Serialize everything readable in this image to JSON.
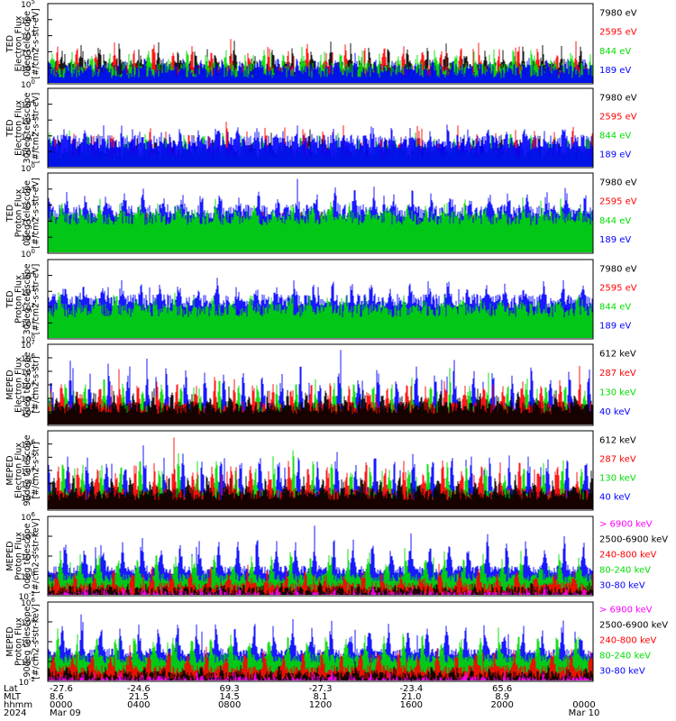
{
  "chart_data": [
    {
      "type": "line",
      "title": "",
      "ylabel": [
        "TED",
        "Electron Flux",
        "0deg telescope",
        "[#/cm2-s-str-eV]"
      ],
      "yscale": "log",
      "ylim": [
        1,
        100000
      ],
      "yticks": [
        {
          "b": "10",
          "e": "0"
        },
        {
          "b": "10",
          "e": "1"
        },
        {
          "b": "10",
          "e": "2"
        },
        {
          "b": "10",
          "e": "3"
        },
        {
          "b": "10",
          "e": "4"
        },
        {
          "b": "10",
          "e": "5"
        }
      ],
      "legend": [
        {
          "label": "7980 eV",
          "color": "#000000"
        },
        {
          "label": "2595 eV",
          "color": "#ff0000"
        },
        {
          "label": "844 eV",
          "color": "#00dd00"
        },
        {
          "label": "189 eV",
          "color": "#0000ff"
        }
      ],
      "series": [
        {
          "color": "#000000",
          "base": 1.0,
          "amp": 1.4
        },
        {
          "color": "#ff0000",
          "base": 0.7,
          "amp": 1.9
        },
        {
          "color": "#00dd00",
          "base": 0.9,
          "amp": 1.1
        },
        {
          "color": "#0000ff",
          "base": 0.8,
          "amp": 0.6
        }
      ]
    },
    {
      "type": "line",
      "title": "",
      "ylabel": [
        "TED",
        "Electron Flux",
        "30deg telescope",
        "[#/cm2-s-str-eV]"
      ],
      "yscale": "log",
      "ylim": [
        1,
        100000
      ],
      "yticks": [
        {
          "b": "10",
          "e": "0"
        },
        {
          "b": "10",
          "e": "1"
        },
        {
          "b": "10",
          "e": "2"
        },
        {
          "b": "10",
          "e": "3"
        },
        {
          "b": "10",
          "e": "4"
        }
      ],
      "legend": [
        {
          "label": "7980 eV",
          "color": "#000000"
        },
        {
          "label": "2595 eV",
          "color": "#ff0000"
        },
        {
          "label": "844 eV",
          "color": "#00dd00"
        },
        {
          "label": "189 eV",
          "color": "#0000ff"
        }
      ],
      "series": [
        {
          "color": "#000000",
          "base": 0.6,
          "amp": 1.4
        },
        {
          "color": "#ff0000",
          "base": 0.8,
          "amp": 1.7
        },
        {
          "color": "#00dd00",
          "base": 1.0,
          "amp": 1.1
        },
        {
          "color": "#0000ff",
          "base": 1.6,
          "amp": 0.8
        }
      ]
    },
    {
      "type": "line",
      "title": "",
      "ylabel": [
        "TED",
        "Proton Flux",
        "0deg telescope",
        "[#/cm2-s-str-eV]"
      ],
      "yscale": "log",
      "ylim": [
        1,
        100000
      ],
      "yticks": [
        {
          "b": "10",
          "e": "0"
        },
        {
          "b": "10",
          "e": "1"
        },
        {
          "b": "10",
          "e": "2"
        },
        {
          "b": "10",
          "e": "3"
        },
        {
          "b": "10",
          "e": "4"
        }
      ],
      "legend": [
        {
          "label": "7980 eV",
          "color": "#000000"
        },
        {
          "label": "2595 eV",
          "color": "#ff0000"
        },
        {
          "label": "844 eV",
          "color": "#00dd00"
        },
        {
          "label": "189 eV",
          "color": "#0000ff"
        }
      ],
      "series": [
        {
          "color": "#000000",
          "base": 1.5,
          "amp": 0.6
        },
        {
          "color": "#ff0000",
          "base": 1.8,
          "amp": 0.5
        },
        {
          "color": "#0000ff",
          "base": 2.6,
          "amp": 1.3
        },
        {
          "color": "#00dd00",
          "base": 2.2,
          "amp": 0.9
        }
      ]
    },
    {
      "type": "line",
      "title": "",
      "ylabel": [
        "TED",
        "Proton Flux",
        "30deg telescope",
        "[#/cm2-s-str-eV]"
      ],
      "yscale": "log",
      "ylim": [
        1,
        100000
      ],
      "yticks": [
        {
          "b": "10",
          "e": "0"
        },
        {
          "b": "10",
          "e": "1"
        },
        {
          "b": "10",
          "e": "2"
        },
        {
          "b": "10",
          "e": "3"
        },
        {
          "b": "10",
          "e": "4"
        }
      ],
      "legend": [
        {
          "label": "7980 eV",
          "color": "#000000"
        },
        {
          "label": "2595 eV",
          "color": "#ff0000"
        },
        {
          "label": "844 eV",
          "color": "#00dd00"
        },
        {
          "label": "189 eV",
          "color": "#0000ff"
        }
      ],
      "series": [
        {
          "color": "#000000",
          "base": 1.2,
          "amp": 0.5
        },
        {
          "color": "#ff0000",
          "base": 1.5,
          "amp": 0.5
        },
        {
          "color": "#0000ff",
          "base": 2.4,
          "amp": 1.2
        },
        {
          "color": "#00dd00",
          "base": 1.8,
          "amp": 0.9
        }
      ]
    },
    {
      "type": "line",
      "title": "",
      "ylabel": [
        "MEPED",
        "Electron Flux",
        "0deg telescope",
        "[#/cm2-s-str]"
      ],
      "yscale": "log",
      "ylim": [
        10,
        10000000
      ],
      "yticks": [
        {
          "b": "10",
          "e": "2"
        },
        {
          "b": "10",
          "e": "3"
        },
        {
          "b": "10",
          "e": "4"
        },
        {
          "b": "10",
          "e": "5"
        },
        {
          "b": "10",
          "e": "6"
        },
        {
          "b": "10",
          "e": "7"
        }
      ],
      "legend": [
        {
          "label": "612 keV",
          "color": "#000000"
        },
        {
          "label": "287 keV",
          "color": "#ff0000"
        },
        {
          "label": "130 keV",
          "color": "#00dd00"
        },
        {
          "label": "40 keV",
          "color": "#0000ff"
        }
      ],
      "series": [
        {
          "color": "#0000ff",
          "base": 2.2,
          "amp": 3.6
        },
        {
          "color": "#00dd00",
          "base": 2.0,
          "amp": 2.9
        },
        {
          "color": "#ff0000",
          "base": 2.3,
          "amp": 2.2
        },
        {
          "color": "#000000",
          "base": 2.3,
          "amp": 1.3
        }
      ]
    },
    {
      "type": "line",
      "title": "",
      "ylabel": [
        "MEPED",
        "Electron Flux",
        "90deg telescope",
        "[#/cm2-s-str]"
      ],
      "yscale": "log",
      "ylim": [
        10,
        10000000
      ],
      "yticks": [
        {
          "b": "10",
          "e": "2"
        },
        {
          "b": "10",
          "e": "3"
        },
        {
          "b": "10",
          "e": "4"
        },
        {
          "b": "10",
          "e": "5"
        },
        {
          "b": "10",
          "e": "6"
        }
      ],
      "legend": [
        {
          "label": "612 keV",
          "color": "#000000"
        },
        {
          "label": "287 keV",
          "color": "#ff0000"
        },
        {
          "label": "130 keV",
          "color": "#00dd00"
        },
        {
          "label": "40 keV",
          "color": "#0000ff"
        }
      ],
      "series": [
        {
          "color": "#0000ff",
          "base": 2.3,
          "amp": 3.5
        },
        {
          "color": "#00dd00",
          "base": 2.1,
          "amp": 3.0
        },
        {
          "color": "#ff0000",
          "base": 2.2,
          "amp": 2.7
        },
        {
          "color": "#000000",
          "base": 2.2,
          "amp": 1.4
        }
      ]
    },
    {
      "type": "line",
      "title": "",
      "ylabel": [
        "MEPED",
        "Proton Flux",
        "0deg telescope",
        "[#/cm2-s-str-keV]"
      ],
      "yscale": "log",
      "ylim": [
        0.01,
        1000000
      ],
      "yticks": [
        {
          "b": "10",
          "e": "-2"
        },
        {
          "b": "10",
          "e": "0"
        },
        {
          "b": "10",
          "e": "2"
        },
        {
          "b": "10",
          "e": "4"
        },
        {
          "b": "10",
          "e": "6"
        }
      ],
      "legend": [
        {
          "label": "> 6900 keV",
          "color": "#ff00ff"
        },
        {
          "label": "2500-6900 keV",
          "color": "#000000"
        },
        {
          "label": "240-800 keV",
          "color": "#ff0000"
        },
        {
          "label": "80-240 keV",
          "color": "#00dd00"
        },
        {
          "label": "30-80 keV",
          "color": "#0000ff"
        }
      ],
      "series": [
        {
          "color": "#0000ff",
          "base": 0.6,
          "amp": 3.4
        },
        {
          "color": "#00dd00",
          "base": -0.2,
          "amp": 2.7
        },
        {
          "color": "#ff0000",
          "base": -1.1,
          "amp": 1.8
        },
        {
          "color": "#000000",
          "base": -1.5,
          "amp": 0.5
        },
        {
          "color": "#ff00ff",
          "base": -2.0,
          "amp": 0.8
        }
      ]
    },
    {
      "type": "line",
      "title": "",
      "ylabel": [
        "MEPED",
        "Proton Flux",
        "90deg telescope",
        "[#/cm2-s-str-keV]"
      ],
      "yscale": "log",
      "ylim": [
        0.01,
        1000000
      ],
      "yticks": [
        {
          "b": "10",
          "e": "-2"
        },
        {
          "b": "10",
          "e": "0"
        },
        {
          "b": "10",
          "e": "2"
        },
        {
          "b": "10",
          "e": "4"
        },
        {
          "b": "10",
          "e": "6"
        }
      ],
      "legend": [
        {
          "label": "> 6900 keV",
          "color": "#ff00ff"
        },
        {
          "label": "2500-6900 keV",
          "color": "#000000"
        },
        {
          "label": "240-800 keV",
          "color": "#ff0000"
        },
        {
          "label": "80-240 keV",
          "color": "#00dd00"
        },
        {
          "label": "30-80 keV",
          "color": "#0000ff"
        }
      ],
      "series": [
        {
          "color": "#0000ff",
          "base": 0.9,
          "amp": 3.1
        },
        {
          "color": "#00dd00",
          "base": 0.3,
          "amp": 2.7
        },
        {
          "color": "#ff0000",
          "base": -0.8,
          "amp": 2.2
        },
        {
          "color": "#000000",
          "base": -1.4,
          "amp": 0.8
        },
        {
          "color": "#ff00ff",
          "base": -1.9,
          "amp": 0.6
        }
      ]
    }
  ],
  "x_axis": {
    "row_labels": [
      "Lat",
      "MLT",
      "hhmm",
      "2024"
    ],
    "columns": [
      {
        "lat": "-27.6",
        "mlt": "8.6",
        "hhmm": "0000",
        "date": "Mar 09"
      },
      {
        "lat": "-24.6",
        "mlt": "21.5",
        "hhmm": "0400",
        "date": ""
      },
      {
        "lat": "69.3",
        "mlt": "14.5",
        "hhmm": "0800",
        "date": ""
      },
      {
        "lat": "-27.3",
        "mlt": "8.1",
        "hhmm": "1200",
        "date": ""
      },
      {
        "lat": "-23.4",
        "mlt": "21.0",
        "hhmm": "1600",
        "date": ""
      },
      {
        "lat": "65.6",
        "mlt": "8.9",
        "hhmm": "2000",
        "date": ""
      },
      {
        "lat": "",
        "mlt": "",
        "hhmm": "0000",
        "date": "Mar 10"
      }
    ]
  }
}
